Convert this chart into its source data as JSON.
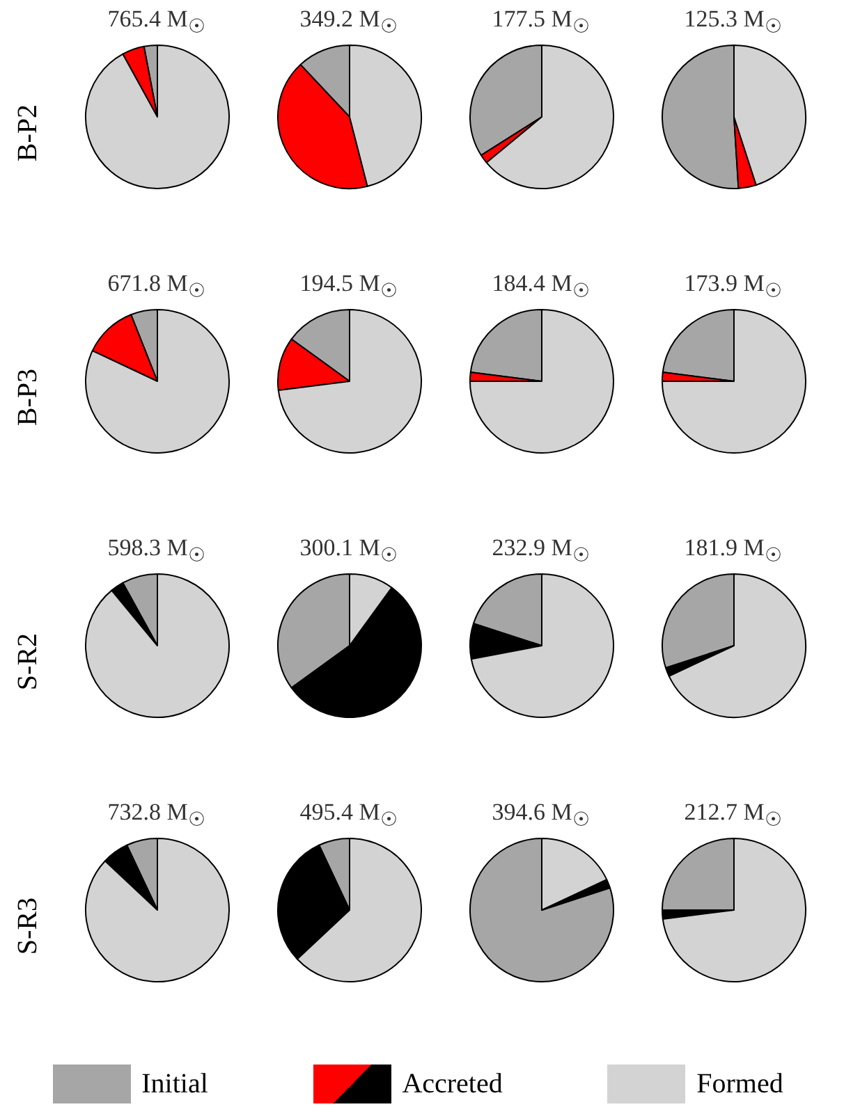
{
  "chart_data": [
    {
      "type": "pie",
      "ylabel": "B-P2",
      "title": "765.4 M$_{☉}$",
      "categories": [
        "Initial",
        "Accreted",
        "Formed"
      ],
      "values": [
        3,
        5,
        92
      ],
      "colors": [
        "#a6a6a6",
        "#ff0000",
        "#d3d3d3"
      ],
      "legend": "bottom"
    },
    {
      "type": "pie",
      "title": "349.2 M$_{☉}$",
      "categories": [
        null,
        null,
        null
      ],
      "values": [
        12,
        42,
        46
      ],
      "colors": [
        "#a6a6a6",
        "#ff0000",
        "#d3d3d3"
      ]
    },
    {
      "type": "pie",
      "title": "177.5 M$_{☉}$",
      "categories": [
        null,
        null,
        null
      ],
      "values": [
        34,
        2,
        64
      ],
      "colors": [
        "#a6a6a6",
        "#ff0000",
        "#d3d3d3"
      ]
    },
    {
      "type": "pie",
      "title": "125.3 M$_{☉}$",
      "categories": [
        null,
        null,
        null
      ],
      "values": [
        51,
        4,
        45
      ],
      "colors": [
        "#a6a6a6",
        "#ff0000",
        "#d3d3d3"
      ]
    },
    {
      "type": "pie",
      "ylabel": "B-P3",
      "title": "671.8 M$_{☉}$",
      "categories": [
        null,
        null,
        null
      ],
      "values": [
        6,
        12,
        82
      ],
      "colors": [
        "#a6a6a6",
        "#ff0000",
        "#d3d3d3"
      ]
    },
    {
      "type": "pie",
      "title": "194.5 M$_{☉}$",
      "categories": [
        null,
        null,
        null
      ],
      "values": [
        15,
        12,
        73
      ],
      "colors": [
        "#a6a6a6",
        "#ff0000",
        "#d3d3d3"
      ]
    },
    {
      "type": "pie",
      "title": "184.4 M$_{☉}$",
      "categories": [
        null,
        null,
        null
      ],
      "values": [
        23,
        2,
        75
      ],
      "colors": [
        "#a6a6a6",
        "#ff0000",
        "#d3d3d3"
      ]
    },
    {
      "type": "pie",
      "title": "173.9 M$_{☉}$",
      "categories": [
        null,
        null,
        null
      ],
      "values": [
        23,
        2,
        75
      ],
      "colors": [
        "#a6a6a6",
        "#ff0000",
        "#d3d3d3"
      ]
    },
    {
      "type": "pie",
      "ylabel": "S-R2",
      "title": "598.3 M$_{☉}$",
      "categories": [
        null,
        null,
        null
      ],
      "values": [
        8,
        3,
        89
      ],
      "colors": [
        "#a6a6a6",
        "#000000",
        "#d3d3d3"
      ]
    },
    {
      "type": "pie",
      "title": "300.1 M$_{☉}$",
      "categories": [
        null,
        null,
        null
      ],
      "values": [
        35,
        55,
        10
      ],
      "colors": [
        "#a6a6a6",
        "#000000",
        "#d3d3d3"
      ]
    },
    {
      "type": "pie",
      "title": "232.9 M$_{☉}$",
      "categories": [
        null,
        null,
        null
      ],
      "values": [
        20,
        8,
        72
      ],
      "colors": [
        "#a6a6a6",
        "#000000",
        "#d3d3d3"
      ]
    },
    {
      "type": "pie",
      "title": "181.9 M$_{☉}$",
      "categories": [
        null,
        null,
        null
      ],
      "values": [
        30,
        2,
        68
      ],
      "colors": [
        "#a6a6a6",
        "#000000",
        "#d3d3d3"
      ]
    },
    {
      "type": "pie",
      "ylabel": "S-R3",
      "title": "732.8 M$_{☉}$",
      "categories": [
        null,
        null,
        null
      ],
      "values": [
        7,
        6,
        87
      ],
      "colors": [
        "#a6a6a6",
        "#000000",
        "#d3d3d3"
      ]
    },
    {
      "type": "pie",
      "title": "495.4 M$_{☉}$",
      "categories": [
        null,
        null,
        null
      ],
      "values": [
        7,
        30,
        63
      ],
      "colors": [
        "#a6a6a6",
        "#000000",
        "#d3d3d3"
      ]
    },
    {
      "type": "pie",
      "title": "394.6 M$_{☉}$",
      "categories": [
        null,
        null,
        null
      ],
      "values": [
        80,
        2,
        18
      ],
      "colors": [
        "#a6a6a6",
        "#000000",
        "#d3d3d3"
      ]
    },
    {
      "type": "pie",
      "title": "212.7 M$_{☉}$",
      "categories": [
        null,
        null,
        null
      ],
      "values": [
        25,
        2,
        73
      ],
      "colors": [
        "#a6a6a6",
        "#000000",
        "#d3d3d3"
      ]
    }
  ]
}
